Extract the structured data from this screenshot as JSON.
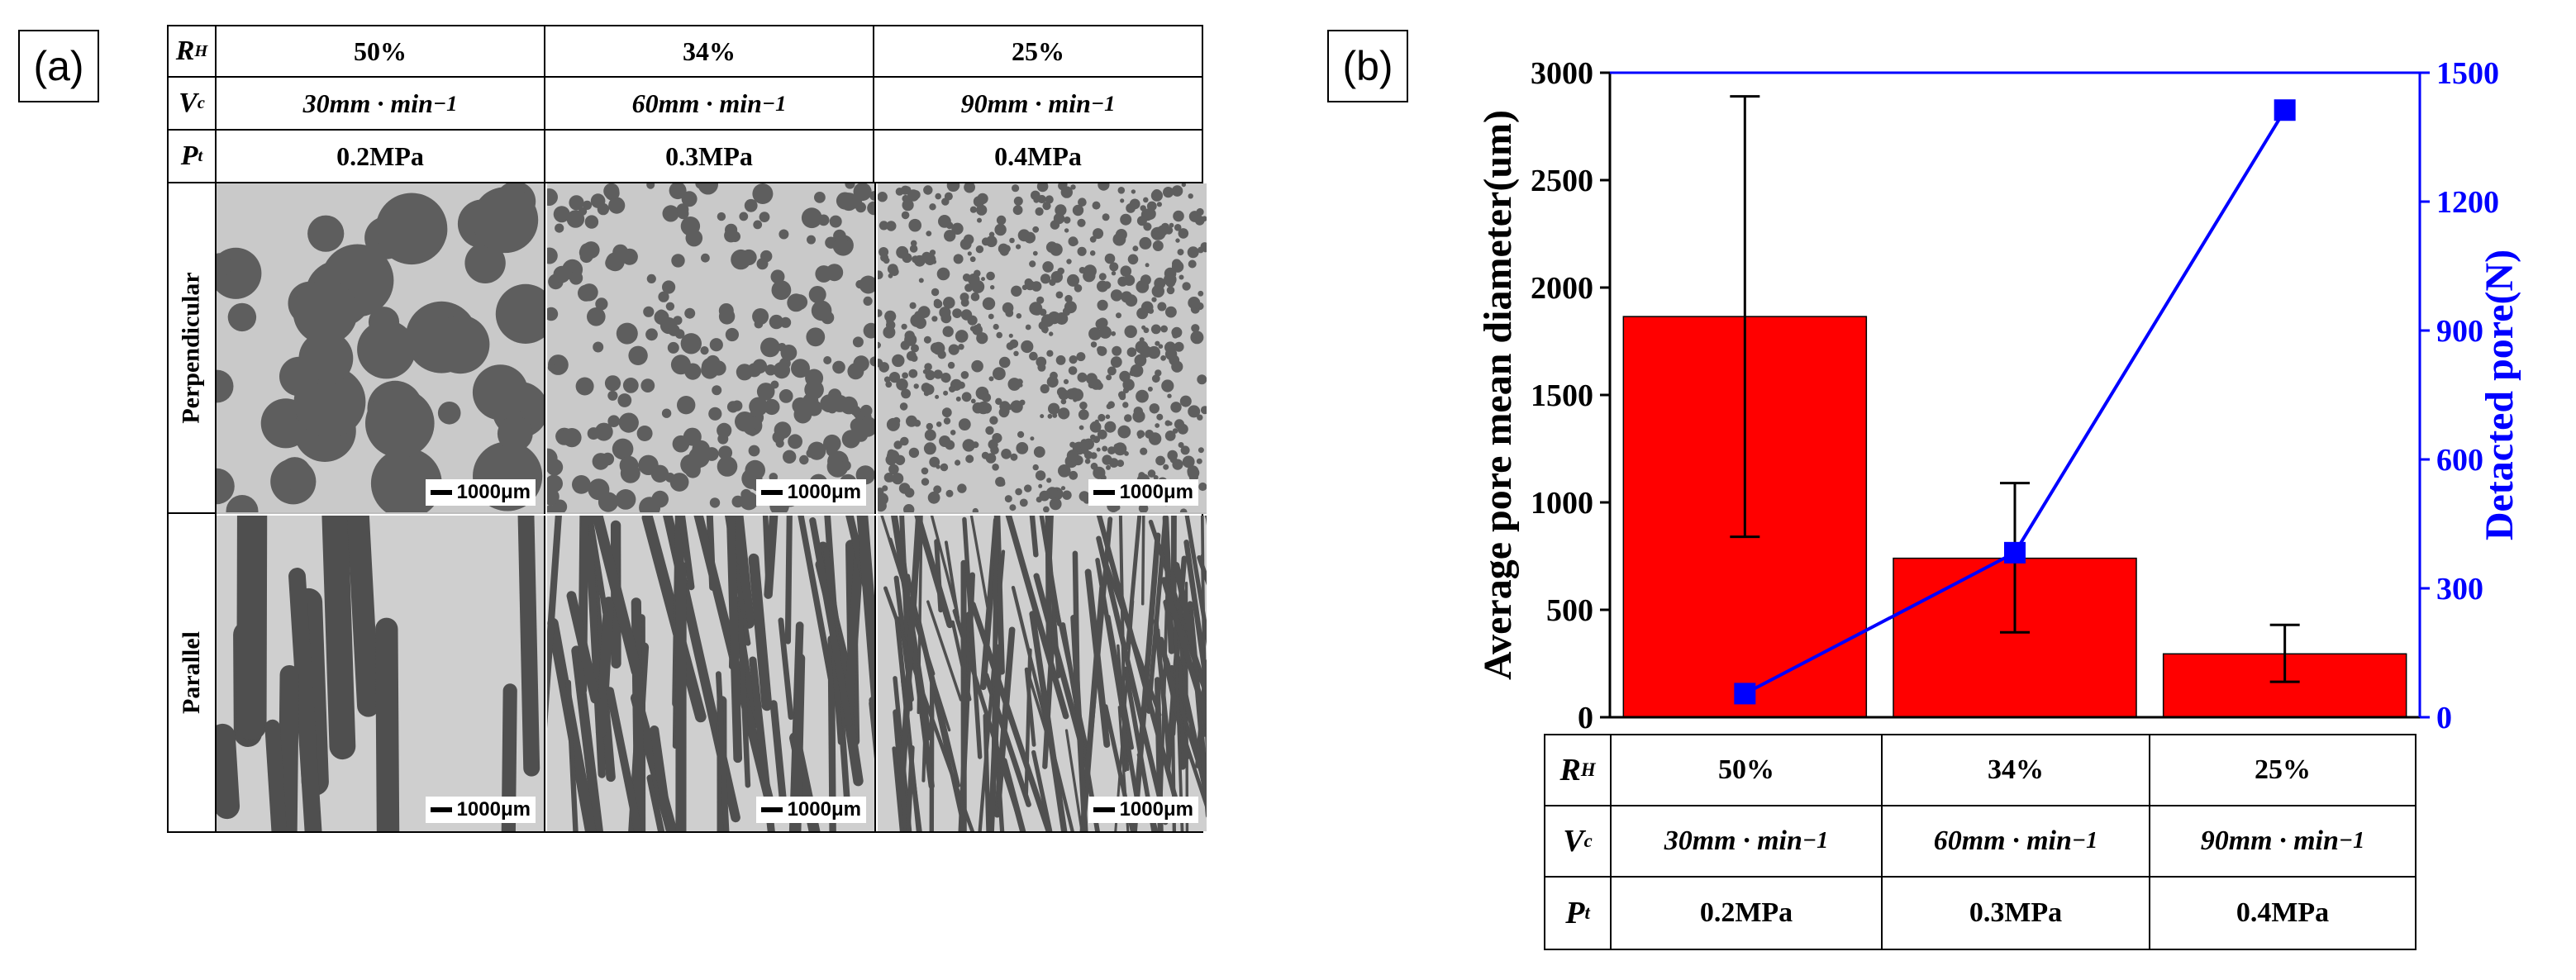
{
  "panel_a": {
    "label": "(a)",
    "table": {
      "rows": [
        {
          "symbol": "R",
          "sub": "H",
          "values": [
            "50%",
            "34%",
            "25%"
          ]
        },
        {
          "symbol": "V",
          "sub": "c",
          "values": [
            "30mm · min",
            "60mm · min",
            "90mm · min"
          ],
          "exp": "−1"
        },
        {
          "symbol": "P",
          "sub": "t",
          "values": [
            "0.2MPa",
            "0.3MPa",
            "0.4MPa"
          ]
        }
      ],
      "image_rows": [
        {
          "label": "Perpendicular",
          "scale": "1000μm"
        },
        {
          "label": "Parallel",
          "scale": "1000μm"
        }
      ]
    }
  },
  "panel_b": {
    "label": "(b)",
    "table": {
      "rows": [
        {
          "symbol": "R",
          "sub": "H",
          "values": [
            "50%",
            "34%",
            "25%"
          ]
        },
        {
          "symbol": "V",
          "sub": "c",
          "values": [
            "30mm · min",
            "60mm · min",
            "90mm · min"
          ],
          "exp": "−1"
        },
        {
          "symbol": "P",
          "sub": "t",
          "values": [
            "0.2MPa",
            "0.3MPa",
            "0.4MPa"
          ]
        }
      ]
    }
  },
  "chart_data": {
    "type": "bar",
    "categories": [
      "50%",
      "34%",
      "25%"
    ],
    "ylabel": "Average pore mean diameter(um)",
    "y2label": "Detacted pore(N)",
    "ylim": [
      0,
      3000
    ],
    "y2lim": [
      0,
      1500
    ],
    "yticks": [
      0,
      500,
      1000,
      1500,
      2000,
      2500,
      3000
    ],
    "y2ticks": [
      0,
      300,
      600,
      900,
      1200,
      1500
    ],
    "series": [
      {
        "name": "Average pore mean diameter",
        "type": "bar",
        "axis": "left",
        "color": "#ff0000",
        "values": [
          1865,
          740,
          295
        ],
        "error_low": [
          840,
          395,
          165
        ],
        "error_high": [
          2890,
          1090,
          430
        ]
      },
      {
        "name": "Detacted pore",
        "type": "line",
        "axis": "right",
        "color": "#0000ff",
        "values": [
          55,
          383,
          1413
        ]
      }
    ],
    "colors": {
      "left_axis": "#000000",
      "right_axis": "#0000ff"
    }
  }
}
